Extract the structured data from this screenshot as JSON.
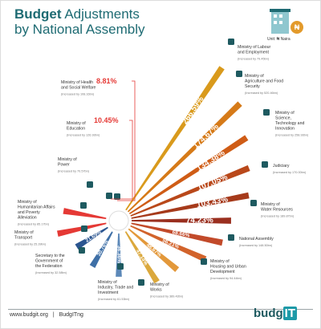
{
  "title": {
    "bold": "Budget",
    "rest": " Adjustments",
    "line2": "by National Assembly"
  },
  "unit_label": "Unit: ₦ Naira",
  "footer": {
    "website": "www.budgit.org",
    "separator": "|",
    "social": "BudgITng"
  },
  "brand": {
    "main": "budg",
    "accent": "IT"
  },
  "colors": {
    "accent_red": "#e53935",
    "teal": "#1e6b73"
  },
  "chart_data": {
    "type": "bar",
    "subtype": "radial",
    "title": "Budget Adjustments by National Assembly",
    "unit": "%",
    "categories": [
      "Ministry of Labour and Employment",
      "Ministry of Agriculture and Food Security",
      "Ministry of Science, Technology and Innovation",
      "Judiciary",
      "Ministry of Water Resources",
      "National Assembly",
      "Ministry of Housing and Urban Development",
      "Ministry of Works",
      "Ministry of Industry, Trade and Investment",
      "Secretary to the Government of the Federation",
      "Ministry of Transport",
      "Ministry of Humanitarian Affairs and Poverty Alleviation",
      "Ministry of Power",
      "Ministry of Education",
      "Ministry of Health and Social Welfare"
    ],
    "values": [
      266.59,
      174.67,
      134.38,
      107.05,
      103.43,
      74.23,
      68.66,
      56.21,
      48.67,
      47.14,
      36.36,
      30.76,
      21.69,
      10.45,
      8.81
    ],
    "value_labels": [
      "266.59%",
      "174.67%",
      "134.38%",
      "107.05%",
      "103.43%",
      "74.23%",
      "68.66%",
      "56.21%",
      "48.67%",
      "47.14%",
      "36.36%",
      "30.76%",
      "21.69%",
      "10.45%",
      "8.81%"
    ],
    "increase_notes": [
      "(Increased by 79.45bn)",
      "(Increased by 520.46bn)",
      "(Increased by 258.93bn)",
      "(Increased by 170.00bn)",
      "(Increased by 189.87bn)",
      "(Increased by 148.50bn)",
      "(Increased by 94.44bn)",
      "(Increased by 389.43bn)",
      "(Increased by 61.53bn)",
      "(Increased by 32.58bn)",
      "(Increased by 25.39bn)",
      "(Increased by 85.17bn)",
      "(Increased by 70.57bn)",
      "(Increased by 126.93bn)",
      "(Increased by 108.16bn)"
    ],
    "colors": [
      "#d99a1c",
      "#d67a18",
      "#cf5c16",
      "#b9481a",
      "#a63a1b",
      "#9a2f1f",
      "#c24a2a",
      "#d2632b",
      "#e3983a",
      "#dba83c",
      "#5c88b8",
      "#3e6fa6",
      "#2b5590",
      "#e53935",
      "#e53935"
    ],
    "legend": "none"
  }
}
